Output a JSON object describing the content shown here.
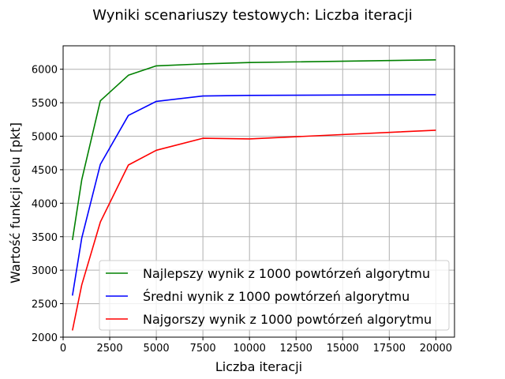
{
  "chart_data": {
    "type": "line",
    "title": "Wyniki scenariuszy testowych: Liczba iteracji",
    "xlabel": "Liczba iteracji",
    "ylabel": "Wartość funkcji celu [pkt]",
    "x": [
      500,
      1000,
      2000,
      3500,
      5000,
      7500,
      10000,
      20000
    ],
    "xlim": [
      0,
      21000
    ],
    "ylim": [
      2000,
      6350
    ],
    "x_ticks": [
      0,
      2500,
      5000,
      7500,
      10000,
      12500,
      15000,
      17500,
      20000
    ],
    "y_ticks": [
      2000,
      2500,
      3000,
      3500,
      4000,
      4500,
      5000,
      5500,
      6000
    ],
    "grid": true,
    "legend_position": "lower-right",
    "series": [
      {
        "name": "Najlepszy wynik z 1000 powtórzeń algorytmu",
        "color": "#008000",
        "values": [
          3450,
          4350,
          5530,
          5910,
          6050,
          6080,
          6100,
          6140
        ]
      },
      {
        "name": "Średni wynik z 1000 powtórzeń algorytmu",
        "color": "#0000ff",
        "values": [
          2620,
          3480,
          4580,
          5310,
          5520,
          5600,
          5610,
          5620
        ]
      },
      {
        "name": "Najgorszy wynik z 1000 powtórzeń algorytmu",
        "color": "#ff0000",
        "values": [
          2100,
          2780,
          3720,
          4570,
          4790,
          4970,
          4960,
          5090
        ]
      }
    ]
  }
}
